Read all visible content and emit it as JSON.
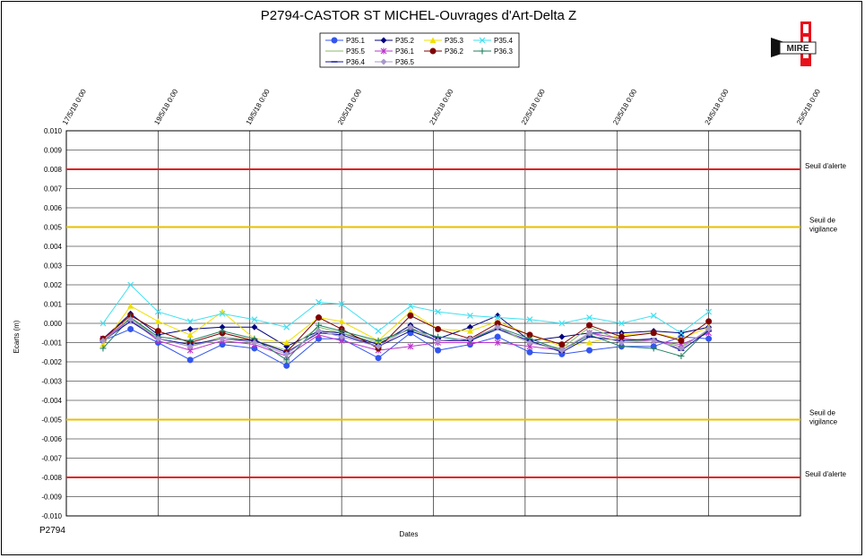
{
  "chart_data": {
    "type": "line",
    "title": "P2794-CASTOR ST MICHEL-Ouvrages d'Art-Delta Z",
    "xlabel": "Dates",
    "ylabel": "Ecarts (m)",
    "ylim": [
      -0.01,
      0.01
    ],
    "yticks": [
      "0.010",
      "0.009",
      "0.008",
      "0.007",
      "0.006",
      "0.005",
      "0.004",
      "0.003",
      "0.002",
      "0.001",
      "0.000",
      "-0.001",
      "-0.002",
      "-0.003",
      "-0.004",
      "-0.005",
      "-0.006",
      "-0.007",
      "-0.008",
      "-0.009",
      "-0.010"
    ],
    "xticks": [
      "17/5/18 0:00",
      "19/5/18 0:00",
      "19/5/18 0:00",
      "20/5/18 0:00",
      "21/5/18 0:00",
      "22/5/18 0:00",
      "23/5/18 0:00",
      "24/5/18 0:00",
      "25/5/18 0:00"
    ],
    "xrange": [
      0,
      8
    ],
    "grid": true,
    "legend_position": "top-center",
    "footer_text": "P2794",
    "thresholds": [
      {
        "label": "Seuil d'alerte",
        "value": 0.008,
        "color": "#e02020"
      },
      {
        "label": "Seuil de vigilance",
        "value": 0.005,
        "color": "#e8c000"
      },
      {
        "label": "Seuil de vigilance",
        "value": -0.005,
        "color": "#e8c000"
      },
      {
        "label": "Seuil d'alerte",
        "value": -0.008,
        "color": "#e02020"
      }
    ],
    "x": [
      0.4,
      0.7,
      1.0,
      1.35,
      1.7,
      2.05,
      2.4,
      2.75,
      3.0,
      3.4,
      3.75,
      4.05,
      4.4,
      4.7,
      5.05,
      5.4,
      5.7,
      6.05,
      6.4,
      6.7,
      7.0
    ],
    "series": [
      {
        "name": "P35.1",
        "color": "#3355ee",
        "marker": "circle",
        "values": [
          -0.0009,
          -0.0003,
          -0.001,
          -0.0019,
          -0.0011,
          -0.0013,
          -0.0022,
          -0.0008,
          -0.0008,
          -0.0018,
          -0.0005,
          -0.0014,
          -0.0011,
          -0.0007,
          -0.0015,
          -0.0016,
          -0.0014,
          -0.0012,
          -0.0012,
          -0.0007,
          -0.0008
        ]
      },
      {
        "name": "P35.2",
        "color": "#000080",
        "marker": "diamond",
        "values": [
          -0.0008,
          0.0005,
          -0.0006,
          -0.0003,
          -0.0002,
          -0.0002,
          -0.0012,
          -0.0004,
          -0.0005,
          -0.0011,
          -0.0001,
          -0.0008,
          -0.0002,
          0.0004,
          -0.0009,
          -0.0007,
          -0.0005,
          -0.0005,
          -0.0004,
          -0.0005,
          -0.0002
        ]
      },
      {
        "name": "P35.3",
        "color": "#f0e000",
        "marker": "triangle",
        "values": [
          -0.0011,
          0.0009,
          0.0001,
          -0.0006,
          0.0006,
          -0.0008,
          -0.001,
          0.0003,
          0.0001,
          -0.0009,
          0.0006,
          -0.0003,
          -0.0004,
          0.0001,
          -0.0006,
          -0.0012,
          -0.001,
          -0.0006,
          -0.0005,
          -0.0008,
          -0.0002
        ]
      },
      {
        "name": "P35.4",
        "color": "#40e0f0",
        "marker": "x",
        "values": [
          0.0,
          0.002,
          0.0006,
          0.0001,
          0.0005,
          0.0002,
          -0.0002,
          0.0011,
          0.001,
          -0.0004,
          0.0009,
          0.0006,
          0.0004,
          0.0003,
          0.0002,
          0.0,
          0.0003,
          0.0,
          0.0004,
          -0.0005,
          0.0006
        ]
      },
      {
        "name": "P35.5",
        "color": "#88bb66",
        "marker": "none",
        "values": [
          -0.0009,
          0.0003,
          -0.0008,
          -0.0012,
          -0.0007,
          -0.0009,
          -0.0014,
          -0.0002,
          -0.0005,
          -0.001,
          -0.0003,
          -0.0009,
          -0.0008,
          -0.0003,
          -0.001,
          -0.0013,
          -0.0002,
          -0.0009,
          -0.0009,
          -0.0012,
          -0.0004
        ]
      },
      {
        "name": "P36.1",
        "color": "#bb33cc",
        "marker": "star",
        "values": [
          -0.0008,
          0.0002,
          -0.0009,
          -0.0014,
          -0.0009,
          -0.0011,
          -0.0017,
          -0.0006,
          -0.0009,
          -0.0014,
          -0.0012,
          -0.001,
          -0.001,
          -0.001,
          -0.0012,
          -0.0014,
          -0.0005,
          -0.0008,
          -0.0009,
          -0.0011,
          -0.0005
        ]
      },
      {
        "name": "P36.2",
        "color": "#800000",
        "marker": "circle",
        "values": [
          -0.0008,
          0.0004,
          -0.0004,
          -0.001,
          -0.0005,
          -0.0009,
          -0.0015,
          0.0003,
          -0.0003,
          -0.0013,
          0.0004,
          -0.0003,
          -0.0008,
          0.0,
          -0.0006,
          -0.0011,
          -0.0001,
          -0.0007,
          -0.0005,
          -0.0009,
          0.0001
        ]
      },
      {
        "name": "P36.3",
        "color": "#208060",
        "marker": "plus",
        "values": [
          -0.0013,
          0.0003,
          -0.0007,
          -0.0009,
          -0.0004,
          -0.0008,
          -0.0019,
          -0.0001,
          -0.0004,
          -0.0009,
          -0.0003,
          -0.0007,
          -0.0009,
          -0.0002,
          -0.0008,
          -0.0014,
          -0.0006,
          -0.0012,
          -0.0013,
          -0.0017,
          -0.0003
        ]
      },
      {
        "name": "P36.4",
        "color": "#1010a0",
        "marker": "dash",
        "values": [
          -0.0009,
          0.0001,
          -0.0008,
          -0.0011,
          -0.0008,
          -0.0009,
          -0.0015,
          -0.0005,
          -0.0006,
          -0.0012,
          -0.0004,
          -0.0009,
          -0.0009,
          -0.0003,
          -0.0009,
          -0.0015,
          -0.0007,
          -0.0009,
          -0.0008,
          -0.0014,
          -0.0004
        ]
      },
      {
        "name": "P36.5",
        "color": "#a898c8",
        "marker": "diamond",
        "values": [
          -0.0009,
          0.0002,
          -0.0008,
          -0.0012,
          -0.0008,
          -0.001,
          -0.0016,
          -0.0004,
          -0.0007,
          -0.0012,
          -0.0002,
          -0.0009,
          -0.0008,
          -0.0002,
          -0.001,
          -0.0014,
          -0.0005,
          -0.001,
          -0.0009,
          -0.0013,
          -0.0003
        ]
      }
    ]
  }
}
